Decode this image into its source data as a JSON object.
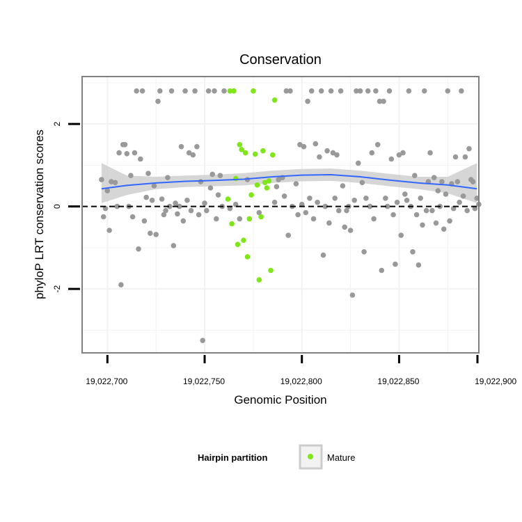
{
  "chart_data": {
    "type": "scatter",
    "title": "Conservation",
    "xlabel": "Genomic Position",
    "ylabel": "phyloP LRT conservation scores",
    "xlim": [
      19022687,
      19022891
    ],
    "ylim": [
      -3.55,
      3.15
    ],
    "x_ticks": [
      19022700,
      19022750,
      19022800,
      19022850,
      19022900
    ],
    "x_tick_labels": [
      "19,022,700",
      "19,022,750",
      "19,022,800",
      "19,022,850",
      "19,022,900"
    ],
    "y_ticks": [
      -2,
      0,
      2
    ],
    "y_tick_labels": [
      "-2",
      "0",
      "2"
    ],
    "reference_line": {
      "y": 0,
      "style": "dashed"
    },
    "grid": true,
    "colors": {
      "background_points": "#999999",
      "mature": "#7FE61A",
      "smooth_line": "#3366FF",
      "ribbon": "#CCCCCC",
      "grid": "#F2F2F2",
      "frame": "#7F7F7F"
    },
    "legend": {
      "title": "Hairpin partition",
      "entries": [
        "Mature"
      ],
      "position": "bottom"
    },
    "smooth": {
      "x": [
        19022697,
        19022710,
        19022725,
        19022740,
        19022755,
        19022770,
        19022785,
        19022800,
        19022815,
        19022830,
        19022845,
        19022860,
        19022875,
        19022890
      ],
      "y": [
        0.43,
        0.51,
        0.57,
        0.61,
        0.63,
        0.66,
        0.72,
        0.76,
        0.77,
        0.72,
        0.64,
        0.57,
        0.52,
        0.43
      ],
      "lower": [
        0.08,
        0.28,
        0.42,
        0.47,
        0.49,
        0.51,
        0.57,
        0.61,
        0.62,
        0.57,
        0.49,
        0.42,
        0.32,
        0.08
      ],
      "upper": [
        1.05,
        0.75,
        0.72,
        0.75,
        0.77,
        0.81,
        0.87,
        0.91,
        0.92,
        0.87,
        0.79,
        0.72,
        0.72,
        1.05
      ]
    },
    "series": [
      {
        "name": "Other",
        "points": [
          [
            19022697,
            0.65
          ],
          [
            19022698,
            -0.25
          ],
          [
            19022699,
            -0.05
          ],
          [
            19022700,
            0.38
          ],
          [
            19022701,
            -0.58
          ],
          [
            19022702,
            0.6
          ],
          [
            19022704,
            0.58
          ],
          [
            19022705,
            0.0
          ],
          [
            19022706,
            1.3
          ],
          [
            19022707,
            -1.9
          ],
          [
            19022708,
            1.5
          ],
          [
            19022709,
            1.5
          ],
          [
            19022710,
            1.28
          ],
          [
            19022711,
            0.0
          ],
          [
            19022712,
            0.75
          ],
          [
            19022713,
            -0.25
          ],
          [
            19022714,
            1.3
          ],
          [
            19022715,
            2.8
          ],
          [
            19022716,
            -1.03
          ],
          [
            19022717,
            1.15
          ],
          [
            19022718,
            2.8
          ],
          [
            19022719,
            -0.35
          ],
          [
            19022720,
            0.22
          ],
          [
            19022721,
            0.8
          ],
          [
            19022722,
            -0.65
          ],
          [
            19022723,
            0.15
          ],
          [
            19022724,
            0.5
          ],
          [
            19022725,
            -0.68
          ],
          [
            19022726,
            2.55
          ],
          [
            19022727,
            2.8
          ],
          [
            19022728,
            0.18
          ],
          [
            19022729,
            -0.2
          ],
          [
            19022730,
            -0.1
          ],
          [
            19022731,
            0.7
          ],
          [
            19022732,
            0.0
          ],
          [
            19022733,
            2.8
          ],
          [
            19022734,
            -0.95
          ],
          [
            19022735,
            0.08
          ],
          [
            19022736,
            -0.18
          ],
          [
            19022737,
            0.0
          ],
          [
            19022738,
            1.45
          ],
          [
            19022739,
            -0.35
          ],
          [
            19022740,
            2.8
          ],
          [
            19022741,
            0.15
          ],
          [
            19022742,
            1.3
          ],
          [
            19022743,
            -0.1
          ],
          [
            19022744,
            1.25
          ],
          [
            19022745,
            2.8
          ],
          [
            19022746,
            1.45
          ],
          [
            19022747,
            -0.2
          ],
          [
            19022748,
            0.6
          ],
          [
            19022749,
            -3.25
          ],
          [
            19022750,
            0.08
          ],
          [
            19022751,
            -0.1
          ],
          [
            19022752,
            2.8
          ],
          [
            19022753,
            0.45
          ],
          [
            19022754,
            0.78
          ],
          [
            19022755,
            2.8
          ],
          [
            19022756,
            -0.3
          ],
          [
            19022757,
            0.28
          ],
          [
            19022758,
            0.75
          ],
          [
            19022759,
            0.0
          ],
          [
            19022760,
            2.8
          ],
          [
            19022763,
            -0.05
          ],
          [
            19022766,
            0.05
          ],
          [
            19022768,
            -0.3
          ],
          [
            19022772,
            0.65
          ],
          [
            19022778,
            -0.15
          ],
          [
            19022786,
            0.1
          ],
          [
            19022787,
            0.48
          ],
          [
            19022788,
            0.65
          ],
          [
            19022790,
            0.7
          ],
          [
            19022791,
            0.25
          ],
          [
            19022792,
            2.8
          ],
          [
            19022793,
            -0.7
          ],
          [
            19022794,
            2.8
          ],
          [
            19022795,
            0.0
          ],
          [
            19022797,
            0.55
          ],
          [
            19022798,
            -0.2
          ],
          [
            19022799,
            1.5
          ],
          [
            19022800,
            0.05
          ],
          [
            19022801,
            1.45
          ],
          [
            19022802,
            -0.15
          ],
          [
            19022803,
            2.55
          ],
          [
            19022804,
            0.2
          ],
          [
            19022805,
            2.8
          ],
          [
            19022806,
            -0.3
          ],
          [
            19022807,
            1.52
          ],
          [
            19022808,
            0.1
          ],
          [
            19022809,
            1.2
          ],
          [
            19022810,
            2.8
          ],
          [
            19022811,
            -1.18
          ],
          [
            19022812,
            0.0
          ],
          [
            19022813,
            1.35
          ],
          [
            19022814,
            -0.4
          ],
          [
            19022815,
            2.8
          ],
          [
            19022816,
            1.3
          ],
          [
            19022817,
            0.2
          ],
          [
            19022818,
            1.25
          ],
          [
            19022819,
            -0.1
          ],
          [
            19022820,
            2.8
          ],
          [
            19022821,
            0.5
          ],
          [
            19022822,
            -0.5
          ],
          [
            19022823,
            -0.1
          ],
          [
            19022824,
            0.0
          ],
          [
            19022825,
            -0.58
          ],
          [
            19022826,
            -2.15
          ],
          [
            19022827,
            0.15
          ],
          [
            19022828,
            2.8
          ],
          [
            19022829,
            1.05
          ],
          [
            19022830,
            2.8
          ],
          [
            19022831,
            0.58
          ],
          [
            19022832,
            -1.1
          ],
          [
            19022833,
            0.2
          ],
          [
            19022834,
            2.8
          ],
          [
            19022835,
            0.0
          ],
          [
            19022836,
            1.3
          ],
          [
            19022837,
            -0.3
          ],
          [
            19022838,
            2.8
          ],
          [
            19022839,
            1.5
          ],
          [
            19022840,
            2.55
          ],
          [
            19022841,
            -1.55
          ],
          [
            19022842,
            2.55
          ],
          [
            19022843,
            0.2
          ],
          [
            19022844,
            0.0
          ],
          [
            19022845,
            2.8
          ],
          [
            19022846,
            1.15
          ],
          [
            19022847,
            -0.2
          ],
          [
            19022848,
            -1.4
          ],
          [
            19022849,
            0.1
          ],
          [
            19022850,
            1.25
          ],
          [
            19022851,
            -0.7
          ],
          [
            19022852,
            1.3
          ],
          [
            19022853,
            0.3
          ],
          [
            19022854,
            0.15
          ],
          [
            19022855,
            2.8
          ],
          [
            19022856,
            0.0
          ],
          [
            19022857,
            -1.1
          ],
          [
            19022858,
            0.75
          ],
          [
            19022859,
            -0.2
          ],
          [
            19022860,
            -1.42
          ],
          [
            19022861,
            0.2
          ],
          [
            19022862,
            -0.45
          ],
          [
            19022863,
            2.8
          ],
          [
            19022864,
            -0.1
          ],
          [
            19022865,
            0.6
          ],
          [
            19022866,
            1.3
          ],
          [
            19022867,
            -0.1
          ],
          [
            19022868,
            0.7
          ],
          [
            19022869,
            -0.4
          ],
          [
            19022870,
            0.38
          ],
          [
            19022871,
            0.0
          ],
          [
            19022872,
            0.6
          ],
          [
            19022873,
            -0.55
          ],
          [
            19022874,
            0.3
          ],
          [
            19022875,
            2.8
          ],
          [
            19022876,
            -0.35
          ],
          [
            19022877,
            0.55
          ],
          [
            19022878,
            -0.05
          ],
          [
            19022879,
            1.2
          ],
          [
            19022880,
            0.6
          ],
          [
            19022881,
            0.1
          ],
          [
            19022882,
            2.8
          ],
          [
            19022883,
            0.25
          ],
          [
            19022884,
            1.2
          ],
          [
            19022885,
            -0.1
          ],
          [
            19022886,
            1.4
          ],
          [
            19022887,
            0.65
          ],
          [
            19022888,
            0.6
          ],
          [
            19022889,
            -0.05
          ],
          [
            19022890,
            0.2
          ],
          [
            19022891,
            0.05
          ]
        ]
      },
      {
        "name": "Mature",
        "points": [
          [
            19022762,
            0.18
          ],
          [
            19022763,
            2.8
          ],
          [
            19022764,
            -0.42
          ],
          [
            19022765,
            2.8
          ],
          [
            19022766,
            0.68
          ],
          [
            19022767,
            -0.92
          ],
          [
            19022768,
            1.5
          ],
          [
            19022769,
            1.38
          ],
          [
            19022770,
            -0.82
          ],
          [
            19022771,
            1.3
          ],
          [
            19022772,
            -1.22
          ],
          [
            19022773,
            -0.3
          ],
          [
            19022774,
            0.28
          ],
          [
            19022775,
            2.8
          ],
          [
            19022776,
            1.27
          ],
          [
            19022777,
            0.52
          ],
          [
            19022778,
            -1.78
          ],
          [
            19022779,
            -0.25
          ],
          [
            19022780,
            1.35
          ],
          [
            19022781,
            0.58
          ],
          [
            19022782,
            0.45
          ],
          [
            19022783,
            0.62
          ],
          [
            19022784,
            -1.55
          ],
          [
            19022785,
            1.25
          ],
          [
            19022786,
            2.58
          ]
        ]
      }
    ]
  }
}
